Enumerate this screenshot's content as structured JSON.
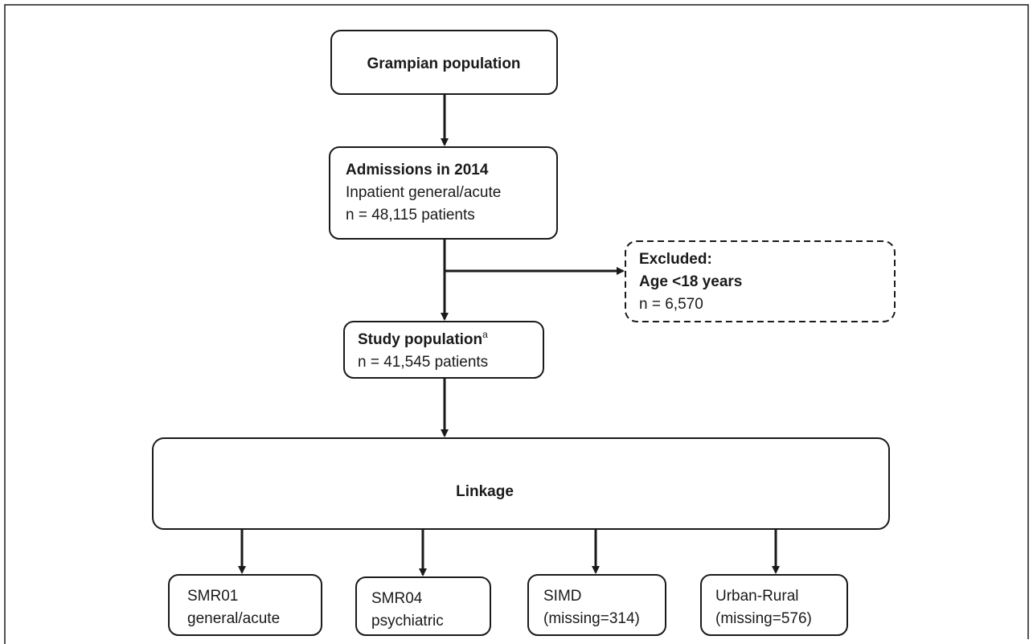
{
  "nodes": [
    {
      "lines": [
        "Grampian population"
      ]
    },
    {
      "lines": [
        "Admissions in 2014",
        "Inpatient general/acute",
        "n = 48,115 patients"
      ]
    },
    {
      "lines": [
        "Excluded:",
        "Age <18 years",
        "n = 6,570"
      ]
    },
    {
      "title": "Study population",
      "superscript": "a",
      "lines": [
        "n = 41,545 patients"
      ]
    },
    {
      "lines": [
        "Linkage"
      ]
    },
    {
      "lines": [
        "SMR01",
        "general/acute"
      ]
    },
    {
      "lines": [
        "SMR04",
        "psychiatric"
      ]
    },
    {
      "lines": [
        "SIMD",
        "(missing=314)"
      ]
    },
    {
      "lines": [
        "Urban-Rural",
        "(missing=576)"
      ]
    }
  ]
}
